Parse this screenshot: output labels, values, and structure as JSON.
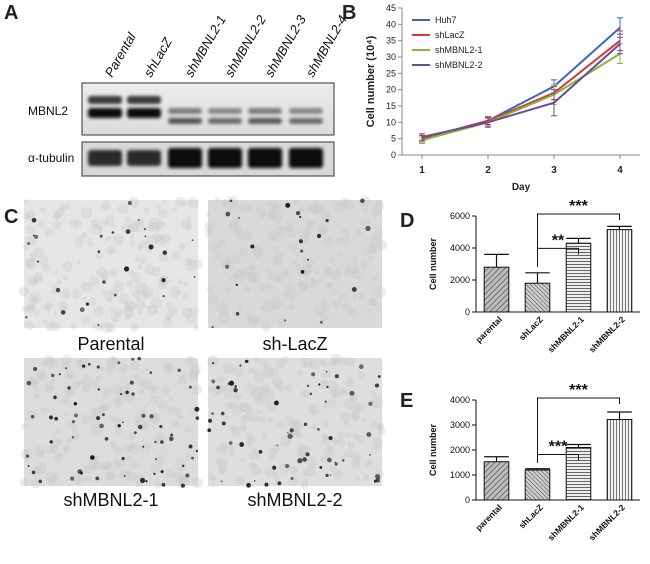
{
  "panels": {
    "a": {
      "letter": "A",
      "lane_labels": [
        "Parental",
        "shLacZ",
        "shMBNL2-1",
        "shMBNL2-2",
        "shMBNL2-3",
        "shMBNL2-4"
      ],
      "row_labels": [
        "MBNL2",
        "α-tubulin"
      ]
    },
    "b": {
      "letter": "B"
    },
    "c": {
      "letter": "C",
      "captions": [
        "Parental",
        "sh-LacZ",
        "shMBNL2-1",
        "shMBNL2-2"
      ]
    },
    "d": {
      "letter": "D"
    },
    "e": {
      "letter": "E"
    }
  },
  "chart_data": [
    {
      "id": "B",
      "type": "line",
      "x": [
        "1",
        "2",
        "3",
        "4"
      ],
      "xlabel": "Day",
      "ylabel": "Cell number (10⁴)",
      "ylim": [
        0,
        45
      ],
      "yticks": [
        0,
        5,
        10,
        15,
        20,
        25,
        30,
        35,
        40,
        45
      ],
      "series": [
        {
          "name": "Huh7",
          "color": "#3a67c7",
          "values": [
            5,
            10.5,
            21,
            39
          ],
          "errors": [
            1,
            1.2,
            2,
            3
          ]
        },
        {
          "name": "shLacZ",
          "color": "#d23a34",
          "values": [
            5,
            10.5,
            19,
            35
          ],
          "errors": [
            1,
            1.2,
            2,
            3
          ]
        },
        {
          "name": "shMBNL2-1",
          "color": "#8ab832",
          "values": [
            4.5,
            10,
            18.5,
            31
          ],
          "errors": [
            1,
            1.2,
            3,
            3
          ]
        },
        {
          "name": "shMBNL2-2",
          "color": "#6a4a9c",
          "values": [
            5.5,
            10,
            16,
            34
          ],
          "errors": [
            1,
            1.5,
            4,
            3
          ]
        }
      ],
      "legend": "top-left"
    },
    {
      "id": "D",
      "type": "bar",
      "categories": [
        "parental",
        "shLacZ",
        "shMBNL2-1",
        "shMBNL2-2"
      ],
      "values": [
        2800,
        1800,
        4300,
        5150
      ],
      "errors": [
        800,
        650,
        300,
        200
      ],
      "ylabel": "Cell number",
      "ylim": [
        0,
        6000
      ],
      "yticks": [
        0,
        2000,
        4000,
        6000
      ],
      "significance": [
        {
          "from": "shLacZ",
          "to": "shMBNL2-2",
          "label": "***"
        },
        {
          "from": "shLacZ",
          "to": "shMBNL2-1",
          "label": "**"
        }
      ]
    },
    {
      "id": "E",
      "type": "bar",
      "categories": [
        "parental",
        "shLacZ",
        "shMBNL2-1",
        "shMBNL2-2"
      ],
      "values": [
        1530,
        1200,
        2100,
        3220
      ],
      "errors": [
        200,
        50,
        120,
        300
      ],
      "ylabel": "Cell number",
      "ylim": [
        0,
        4000
      ],
      "yticks": [
        0,
        1000,
        2000,
        3000,
        4000
      ],
      "significance": [
        {
          "from": "shLacZ",
          "to": "shMBNL2-2",
          "label": "***"
        },
        {
          "from": "shLacZ",
          "to": "shMBNL2-1",
          "label": "***"
        }
      ]
    }
  ]
}
